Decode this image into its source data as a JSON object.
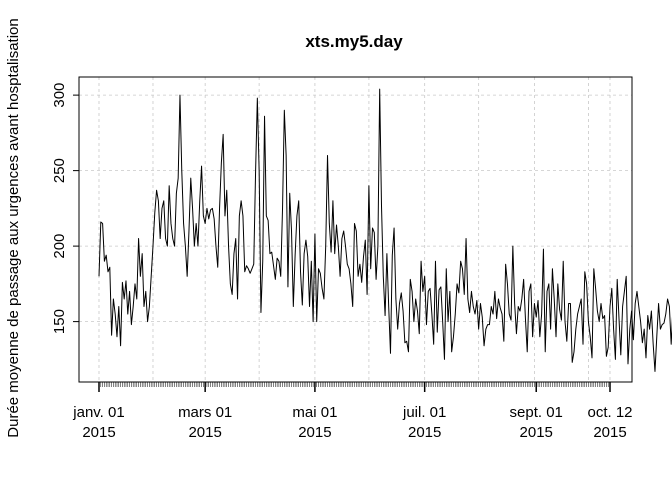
{
  "chart_data": {
    "type": "line",
    "title": "xts.my5.day",
    "xlabel": "",
    "ylabel": "Durée moyenne de passage aux urgences avant hosptalisation",
    "x_start": "2015-01-01",
    "x_end": "2015-10-12",
    "xlim": [
      "2015-01-01",
      "2015-10-12"
    ],
    "ylim": [
      110,
      312
    ],
    "yticks": [
      150,
      200,
      250,
      300
    ],
    "xticks": [
      {
        "date": "2015-01-01",
        "label1": "janv. 01",
        "label2": "2015"
      },
      {
        "date": "2015-03-01",
        "label1": "mars 01",
        "label2": "2015"
      },
      {
        "date": "2015-05-01",
        "label1": "mai 01",
        "label2": "2015"
      },
      {
        "date": "2015-07-01",
        "label1": "juil. 01",
        "label2": "2015"
      },
      {
        "date": "2015-09-01",
        "label1": "sept. 01",
        "label2": "2015"
      },
      {
        "date": "2015-10-12",
        "label1": "oct. 12",
        "label2": "2015"
      }
    ],
    "vgrid_dates": [
      "2015-01-01",
      "2015-01-31",
      "2015-03-01",
      "2015-03-31",
      "2015-05-01",
      "2015-05-31",
      "2015-07-01",
      "2015-07-31",
      "2015-08-31",
      "2015-09-30",
      "2015-10-12"
    ],
    "grid": true,
    "series": [
      {
        "values": [
          180,
          216,
          215,
          190,
          194,
          183,
          186,
          141,
          165,
          155,
          140,
          160,
          134,
          176,
          165,
          177,
          155,
          170,
          148,
          160,
          175,
          165,
          205,
          180,
          195,
          160,
          170,
          150,
          160,
          180,
          200,
          222,
          237,
          230,
          205,
          225,
          230,
          205,
          200,
          240,
          215,
          205,
          200,
          235,
          245,
          300,
          250,
          215,
          200,
          180,
          210,
          245,
          225,
          200,
          215,
          200,
          230,
          253,
          220,
          215,
          225,
          218,
          224,
          225,
          218,
          200,
          186,
          225,
          255,
          274,
          220,
          237,
          200,
          175,
          168,
          195,
          205,
          165,
          220,
          230,
          220,
          183,
          187,
          185,
          182,
          185,
          188,
          248,
          298,
          250,
          156,
          190,
          286,
          220,
          217,
          195,
          196,
          187,
          178,
          192,
          190,
          180,
          225,
          290,
          260,
          173,
          235,
          210,
          160,
          194,
          220,
          230,
          183,
          161,
          195,
          204,
          193,
          160,
          190,
          150,
          208,
          150,
          185,
          182,
          172,
          165,
          200,
          260,
          215,
          196,
          230,
          195,
          214,
          200,
          180,
          205,
          210,
          200,
          188,
          185,
          175,
          160,
          215,
          210,
          180,
          188,
          176,
          193,
          204,
          168,
          240,
          185,
          212,
          209,
          178,
          200,
          304,
          227,
          180,
          154,
          195,
          160,
          129,
          194,
          212,
          165,
          145,
          162,
          169,
          157,
          136,
          137,
          130,
          178,
          170,
          150,
          165,
          157,
          142,
          190,
          170,
          180,
          148,
          170,
          172,
          155,
          135,
          190,
          143,
          171,
          173,
          150,
          125,
          185,
          150,
          170,
          130,
          140,
          155,
          175,
          169,
          190,
          185,
          168,
          205,
          165,
          156,
          170,
          160,
          155,
          164,
          145,
          162,
          153,
          134,
          145,
          148,
          148,
          160,
          155,
          170,
          152,
          165,
          159,
          155,
          137,
          188,
          175,
          155,
          151,
          200,
          162,
          142,
          160,
          157,
          165,
          178,
          152,
          130,
          170,
          175,
          140,
          162,
          153,
          164,
          140,
          155,
          198,
          130,
          170,
          175,
          145,
          185,
          165,
          140,
          175,
          158,
          151,
          190,
          150,
          137,
          162,
          162,
          123,
          130,
          145,
          155,
          160,
          165,
          135,
          183,
          175,
          150,
          140,
          126,
          185,
          172,
          157,
          150,
          162,
          152,
          154,
          127,
          133,
          160,
          172,
          145,
          125,
          178,
          152,
          128,
          160,
          170,
          180,
          122,
          145,
          157,
          138,
          162,
          170,
          160,
          150,
          136,
          145,
          126,
          154,
          145,
          157,
          135,
          117,
          140,
          162,
          145,
          148,
          149,
          155,
          165,
          160,
          135,
          160,
          152,
          180,
          155,
          165,
          150,
          155,
          175,
          170,
          185,
          165,
          152,
          170,
          196,
          180,
          150,
          160,
          175,
          168,
          185,
          155,
          150,
          158,
          173,
          155,
          190,
          163,
          154,
          180,
          202,
          158,
          160,
          152,
          172,
          165,
          170,
          195,
          170,
          148,
          149,
          147,
          146
        ]
      }
    ]
  }
}
